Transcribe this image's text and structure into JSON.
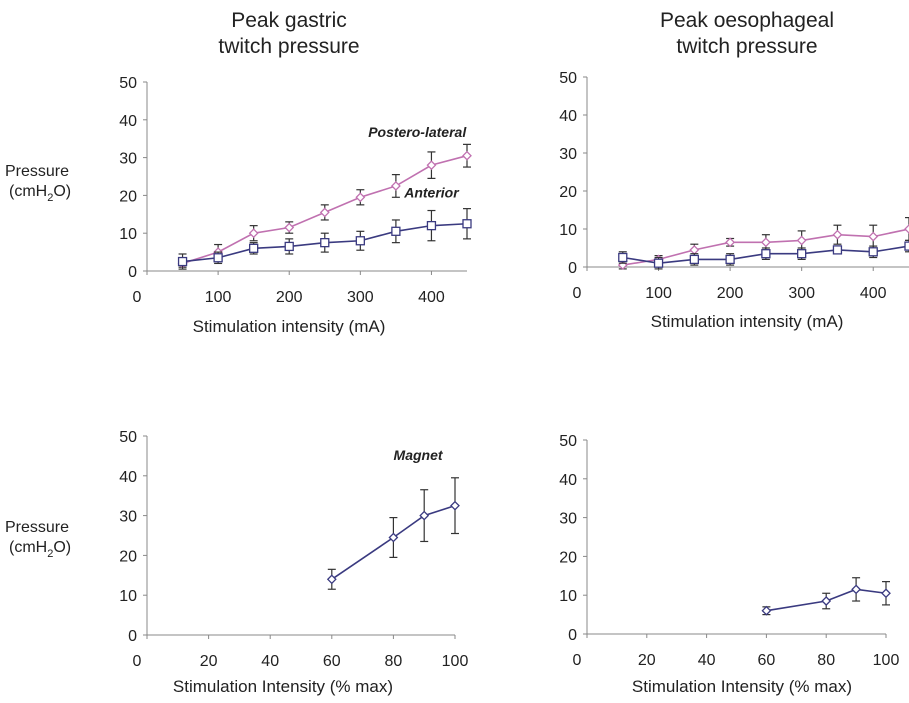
{
  "colors": {
    "postero_lateral": "#c071b0",
    "anterior": "#3a3a80",
    "magnet": "#3a3a80",
    "axis": "#888888"
  },
  "titles": {
    "gastric": [
      "Peak gastric",
      "twitch pressure"
    ],
    "oesophageal": [
      "Peak oesophageal",
      "twitch pressure"
    ]
  },
  "ylabel": {
    "line1": "Pressure",
    "line2_pre": "(cmH",
    "line2_sub": "2",
    "line2_post": "O)"
  },
  "chart_data": [
    {
      "id": "gastric_ma",
      "type": "line",
      "xlabel": "Stimulation intensity (mA)",
      "xlim": [
        0,
        450
      ],
      "ylim": [
        0,
        50
      ],
      "xticks": [
        0,
        100,
        200,
        300,
        400
      ],
      "yticks": [
        0,
        10,
        20,
        30,
        40,
        50
      ],
      "series": [
        {
          "name": "Postero-lateral",
          "color": "#c071b0",
          "marker": "diamond",
          "x": [
            50,
            100,
            150,
            200,
            250,
            300,
            350,
            400,
            450
          ],
          "y": [
            2,
            5,
            10,
            11.5,
            15.5,
            19.5,
            22.5,
            28,
            30.5
          ],
          "err": [
            1,
            2,
            2,
            1.5,
            2,
            2,
            3,
            3.5,
            3
          ]
        },
        {
          "name": "Anterior",
          "color": "#3a3a80",
          "marker": "square",
          "x": [
            50,
            100,
            150,
            200,
            250,
            300,
            350,
            400,
            450
          ],
          "y": [
            2.5,
            3.5,
            6,
            6.5,
            7.5,
            8,
            10.5,
            12,
            12.5
          ],
          "err": [
            2,
            1.5,
            1.5,
            2,
            2.5,
            2.5,
            3,
            4,
            4
          ]
        }
      ],
      "annotations": [
        {
          "text": "Postero-lateral",
          "x": 380,
          "y": 35.5
        },
        {
          "text": "Anterior",
          "x": 400,
          "y": 19.5
        }
      ]
    },
    {
      "id": "oesophageal_ma",
      "type": "line",
      "xlabel": "Stimulation intensity (mA)",
      "xlim": [
        0,
        450
      ],
      "ylim": [
        0,
        50
      ],
      "xticks": [
        0,
        100,
        200,
        300,
        400
      ],
      "yticks": [
        0,
        10,
        20,
        30,
        40,
        50
      ],
      "series": [
        {
          "name": "Postero-lateral",
          "color": "#c071b0",
          "marker": "diamond",
          "x": [
            50,
            100,
            150,
            200,
            250,
            300,
            350,
            400,
            450
          ],
          "y": [
            0.5,
            2,
            4.5,
            6.5,
            6.5,
            7,
            8.5,
            8,
            10
          ],
          "err": [
            1,
            1,
            1.5,
            1,
            2,
            2.5,
            2.5,
            3,
            3
          ]
        },
        {
          "name": "Anterior",
          "color": "#3a3a80",
          "marker": "square",
          "x": [
            50,
            100,
            150,
            200,
            250,
            300,
            350,
            400,
            450
          ],
          "y": [
            2.5,
            1,
            2,
            2,
            3.5,
            3.5,
            4.5,
            4,
            5.5
          ],
          "err": [
            1.5,
            1.5,
            1.5,
            1.5,
            1.5,
            1.5,
            1,
            1.5,
            1.5
          ]
        }
      ],
      "annotations": []
    },
    {
      "id": "gastric_magnet",
      "type": "line",
      "xlabel": "Stimulation Intensity (% max)",
      "xlim": [
        0,
        100
      ],
      "ylim": [
        0,
        50
      ],
      "xticks": [
        0,
        20,
        40,
        60,
        80,
        100
      ],
      "yticks": [
        0,
        10,
        20,
        30,
        40,
        50
      ],
      "series": [
        {
          "name": "Magnet",
          "color": "#3a3a80",
          "marker": "diamond",
          "x": [
            60,
            80,
            90,
            100
          ],
          "y": [
            14,
            24.5,
            30,
            32.5
          ],
          "err": [
            2.5,
            5,
            6.5,
            7
          ]
        }
      ],
      "annotations": [
        {
          "text": "Magnet",
          "x": 88,
          "y": 44
        }
      ]
    },
    {
      "id": "oesophageal_magnet",
      "type": "line",
      "xlabel": "Stimulation Intensity (% max)",
      "xlim": [
        0,
        100
      ],
      "ylim": [
        0,
        50
      ],
      "xticks": [
        0,
        20,
        40,
        60,
        80,
        100
      ],
      "yticks": [
        0,
        10,
        20,
        30,
        40,
        50
      ],
      "series": [
        {
          "name": "Magnet",
          "color": "#3a3a80",
          "marker": "diamond",
          "x": [
            60,
            80,
            90,
            100
          ],
          "y": [
            6,
            8.5,
            11.5,
            10.5
          ],
          "err": [
            1,
            2,
            3,
            3
          ]
        }
      ],
      "annotations": []
    }
  ]
}
